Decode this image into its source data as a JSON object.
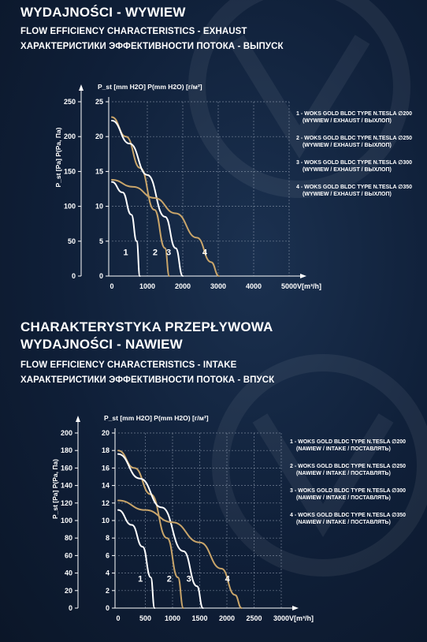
{
  "section1": {
    "title": "WYDAJNOŚCI - WYWIEW",
    "subtitle_en": "FLOW EFFICIENCY CHARACTERISTICS - EXHAUST",
    "subtitle_ru": "ХАРАКТЕРИСТИКИ ЭФФЕКТИВНОСТИ ПОТОКА - ВЫПУСК"
  },
  "section2": {
    "title_line1": "CHARAKTERYSTYKA PRZEPŁYWOWA",
    "title_line2": "WYDAJNOŚCI - NAWIEW",
    "subtitle_en": "FLOW EFFICIENCY CHARACTERISTICS - INTAKE",
    "subtitle_ru": "ХАРАКТЕРИСТИКИ ЭФФЕКТИВНОСТИ ПОТОКА - ВПУСК"
  },
  "colors": {
    "white_curve": "#ffffff",
    "gold_curve": "#c9a56a",
    "grid": "#9aa6b8",
    "background": "#12233d"
  },
  "chart_data": [
    {
      "type": "line",
      "ylabel_left": "P_st [Pa] P(Pa, Па)",
      "ylabel_mid": "P_st [mm H2O] P(mm H2O) [г/м²]",
      "xlabel": "V[m³/h]",
      "x_ticks": [
        0,
        1000,
        2000,
        3000,
        4000,
        5000
      ],
      "y_ticks_pa": [
        0,
        50,
        100,
        150,
        200,
        250
      ],
      "y_ticks_mm": [
        0,
        5,
        10,
        15,
        20,
        25
      ],
      "xlim": [
        0,
        5000
      ],
      "ylim": [
        0,
        250
      ],
      "series": [
        {
          "name": "1",
          "color": "white",
          "points": [
            [
              0,
              135
            ],
            [
              300,
              120
            ],
            [
              550,
              88
            ],
            [
              700,
              50
            ],
            [
              790,
              0
            ]
          ]
        },
        {
          "name": "2",
          "color": "gold",
          "points": [
            [
              0,
              228
            ],
            [
              400,
              200
            ],
            [
              800,
              155
            ],
            [
              1200,
              95
            ],
            [
              1500,
              40
            ],
            [
              1620,
              0
            ]
          ]
        },
        {
          "name": "3",
          "color": "white",
          "points": [
            [
              0,
              223
            ],
            [
              500,
              190
            ],
            [
              1000,
              145
            ],
            [
              1500,
              85
            ],
            [
              1800,
              40
            ],
            [
              2000,
              0
            ]
          ]
        },
        {
          "name": "4",
          "color": "gold",
          "points": [
            [
              0,
              138
            ],
            [
              600,
              128
            ],
            [
              1200,
              112
            ],
            [
              1800,
              90
            ],
            [
              2400,
              55
            ],
            [
              2800,
              20
            ],
            [
              3020,
              0
            ]
          ]
        }
      ],
      "legend": [
        {
          "line1": "1 - WOKS GOLD BLDC TYPE N.TESLA ∅200",
          "line2": "(WYWIEW / EXHAUST / ВЫХЛОП)"
        },
        {
          "line1": "2 - WOKS GOLD BLDC TYPE N.TESLA ∅250",
          "line2": "(WYWIEW / EXHAUST / ВЫХЛОП)"
        },
        {
          "line1": "3 - WOKS GOLD BLDC TYPE N.TESLA ∅300",
          "line2": "(WYWIEW / EXHAUST / ВЫХЛОП)"
        },
        {
          "line1": "4 - WOKS GOLD BLDC TYPE N.TESLA ∅350",
          "line2": "(WYWIEW / EXHAUST / ВЫХЛОП)"
        }
      ]
    },
    {
      "type": "line",
      "ylabel_left": "P_st [Pa] P(Pa, Па)",
      "ylabel_mid": "P_st [mm H2O] P(mm H2O) [г/м²]",
      "xlabel": "V[m³/h]",
      "x_ticks": [
        0,
        500,
        1000,
        1500,
        2000,
        2500,
        3000
      ],
      "y_ticks_pa": [
        0,
        20,
        40,
        60,
        80,
        100,
        120,
        140,
        160,
        180,
        200
      ],
      "y_ticks_mm": [
        0,
        2,
        4,
        6,
        8,
        10,
        12,
        14,
        16,
        18,
        20
      ],
      "xlim": [
        0,
        3000
      ],
      "ylim": [
        0,
        200
      ],
      "series": [
        {
          "name": "1",
          "color": "white",
          "points": [
            [
              0,
              112
            ],
            [
              250,
              95
            ],
            [
              450,
              70
            ],
            [
              600,
              35
            ],
            [
              670,
              0
            ]
          ]
        },
        {
          "name": "2",
          "color": "gold",
          "points": [
            [
              0,
              180
            ],
            [
              300,
              160
            ],
            [
              600,
              130
            ],
            [
              900,
              80
            ],
            [
              1100,
              35
            ],
            [
              1200,
              0
            ]
          ]
        },
        {
          "name": "3",
          "color": "white",
          "points": [
            [
              0,
              176
            ],
            [
              400,
              148
            ],
            [
              800,
              115
            ],
            [
              1200,
              65
            ],
            [
              1450,
              25
            ],
            [
              1560,
              0
            ]
          ]
        },
        {
          "name": "4",
          "color": "gold",
          "points": [
            [
              0,
              123
            ],
            [
              500,
              112
            ],
            [
              1000,
              98
            ],
            [
              1500,
              75
            ],
            [
              1900,
              45
            ],
            [
              2150,
              15
            ],
            [
              2270,
              0
            ]
          ]
        }
      ],
      "legend": [
        {
          "line1": "1 - WOKS GOLD BLDC TYPE N.TESLA ∅200",
          "line2": "(NAWIEW / INTAKE / ПОСТАВЛЯТЬ)"
        },
        {
          "line1": "2 - WOKS GOLD BLDC TYPE N.TESLA ∅250",
          "line2": "(NAWIEW / INTAKE / ПОСТАВЛЯТЬ)"
        },
        {
          "line1": "3 - WOKS GOLD BLDC TYPE N.TESLA ∅300",
          "line2": "(NAWIEW / INTAKE / ПОСТАВЛЯТЬ)"
        },
        {
          "line1": "4 - WOKS GOLD BLDC TYPE N.TESLA ∅350",
          "line2": "(NAWIEW / INTAKE / ПОСТАВЛЯТЬ)"
        }
      ]
    }
  ]
}
